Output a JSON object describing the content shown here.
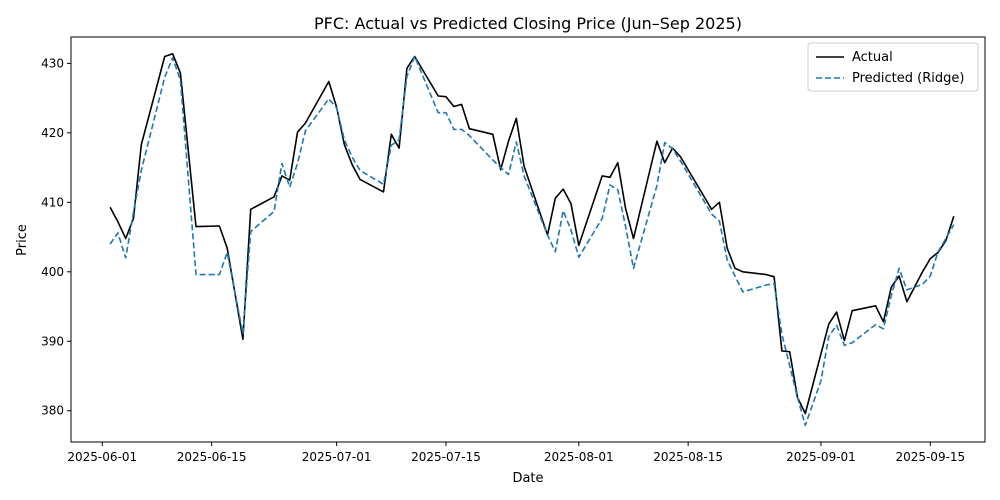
{
  "chart_data": {
    "type": "line",
    "title": "PFC: Actual vs Predicted Closing Price (Jun–Sep 2025)",
    "xlabel": "Date",
    "ylabel": "Price",
    "xlim": [
      "2025-05-28",
      "2025-09-22"
    ],
    "ylim": [
      375.5,
      433.8
    ],
    "x_ticks": [
      "2025-06-01",
      "2025-06-15",
      "2025-07-01",
      "2025-07-15",
      "2025-08-01",
      "2025-08-15",
      "2025-09-01",
      "2025-09-15"
    ],
    "y_ticks": [
      380,
      390,
      400,
      410,
      420,
      430
    ],
    "grid": false,
    "legend": {
      "position": "top-right",
      "entries": [
        "Actual",
        "Predicted (Ridge)"
      ]
    },
    "series": [
      {
        "name": "Actual",
        "color": "#000000",
        "style": "solid",
        "points": [
          [
            "2025-06-02",
            409.3
          ],
          [
            "2025-06-03",
            407.2
          ],
          [
            "2025-06-04",
            404.8
          ],
          [
            "2025-06-05",
            407.7
          ],
          [
            "2025-06-06",
            418.3
          ],
          [
            "2025-06-09",
            431.0
          ],
          [
            "2025-06-10",
            431.4
          ],
          [
            "2025-06-11",
            428.6
          ],
          [
            "2025-06-13",
            406.5
          ],
          [
            "2025-06-16",
            406.6
          ],
          [
            "2025-06-17",
            403.4
          ],
          [
            "2025-06-19",
            390.3
          ],
          [
            "2025-06-20",
            409.0
          ],
          [
            "2025-06-23",
            410.8
          ],
          [
            "2025-06-24",
            413.8
          ],
          [
            "2025-06-25",
            413.2
          ],
          [
            "2025-06-26",
            420.1
          ],
          [
            "2025-06-27",
            421.4
          ],
          [
            "2025-06-30",
            427.4
          ],
          [
            "2025-07-01",
            423.7
          ],
          [
            "2025-07-02",
            418.3
          ],
          [
            "2025-07-03",
            415.4
          ],
          [
            "2025-07-04",
            413.3
          ],
          [
            "2025-07-07",
            411.5
          ],
          [
            "2025-07-08",
            419.8
          ],
          [
            "2025-07-09",
            417.8
          ],
          [
            "2025-07-10",
            429.3
          ],
          [
            "2025-07-11",
            431.0
          ],
          [
            "2025-07-14",
            425.3
          ],
          [
            "2025-07-15",
            425.2
          ],
          [
            "2025-07-16",
            423.8
          ],
          [
            "2025-07-17",
            424.1
          ],
          [
            "2025-07-18",
            420.6
          ],
          [
            "2025-07-21",
            419.8
          ],
          [
            "2025-07-22",
            414.7
          ],
          [
            "2025-07-23",
            418.8
          ],
          [
            "2025-07-24",
            422.1
          ],
          [
            "2025-07-25",
            415.2
          ],
          [
            "2025-07-28",
            405.3
          ],
          [
            "2025-07-29",
            410.6
          ],
          [
            "2025-07-30",
            411.9
          ],
          [
            "2025-07-31",
            409.8
          ],
          [
            "2025-08-01",
            403.8
          ],
          [
            "2025-08-04",
            413.8
          ],
          [
            "2025-08-05",
            413.6
          ],
          [
            "2025-08-06",
            415.7
          ],
          [
            "2025-08-07",
            409.1
          ],
          [
            "2025-08-08",
            404.8
          ],
          [
            "2025-08-11",
            418.8
          ],
          [
            "2025-08-12",
            415.7
          ],
          [
            "2025-08-13",
            417.8
          ],
          [
            "2025-08-14",
            416.6
          ],
          [
            "2025-08-18",
            409.0
          ],
          [
            "2025-08-19",
            410.0
          ],
          [
            "2025-08-20",
            403.4
          ],
          [
            "2025-08-21",
            400.5
          ],
          [
            "2025-08-22",
            400.0
          ],
          [
            "2025-08-25",
            399.6
          ],
          [
            "2025-08-26",
            399.3
          ],
          [
            "2025-08-27",
            388.6
          ],
          [
            "2025-08-28",
            388.5
          ],
          [
            "2025-08-29",
            381.9
          ],
          [
            "2025-08-30",
            379.6
          ],
          [
            "2025-09-02",
            392.5
          ],
          [
            "2025-09-03",
            394.2
          ],
          [
            "2025-09-04",
            390.1
          ],
          [
            "2025-09-05",
            394.4
          ],
          [
            "2025-09-08",
            395.1
          ],
          [
            "2025-09-09",
            392.8
          ],
          [
            "2025-09-10",
            397.8
          ],
          [
            "2025-09-11",
            399.4
          ],
          [
            "2025-09-12",
            395.7
          ],
          [
            "2025-09-14",
            400.0
          ],
          [
            "2025-09-15",
            401.9
          ],
          [
            "2025-09-16",
            402.8
          ],
          [
            "2025-09-17",
            404.5
          ],
          [
            "2025-09-18",
            408.0
          ]
        ]
      },
      {
        "name": "Predicted (Ridge)",
        "color": "#1f77b4",
        "style": "dashed",
        "points": [
          [
            "2025-06-02",
            404.0
          ],
          [
            "2025-06-03",
            405.6
          ],
          [
            "2025-06-04",
            402.0
          ],
          [
            "2025-06-05",
            408.6
          ],
          [
            "2025-06-06",
            414.6
          ],
          [
            "2025-06-09",
            428.0
          ],
          [
            "2025-06-10",
            430.8
          ],
          [
            "2025-06-11",
            427.6
          ],
          [
            "2025-06-13",
            399.6
          ],
          [
            "2025-06-16",
            399.6
          ],
          [
            "2025-06-17",
            402.8
          ],
          [
            "2025-06-19",
            391.1
          ],
          [
            "2025-06-20",
            405.8
          ],
          [
            "2025-06-23",
            408.7
          ],
          [
            "2025-06-24",
            415.6
          ],
          [
            "2025-06-25",
            412.2
          ],
          [
            "2025-06-26",
            415.6
          ],
          [
            "2025-06-27",
            420.3
          ],
          [
            "2025-06-30",
            424.9
          ],
          [
            "2025-07-01",
            423.6
          ],
          [
            "2025-07-02",
            419.0
          ],
          [
            "2025-07-03",
            416.5
          ],
          [
            "2025-07-04",
            414.6
          ],
          [
            "2025-07-07",
            412.6
          ],
          [
            "2025-07-08",
            418.2
          ],
          [
            "2025-07-09",
            419.0
          ],
          [
            "2025-07-10",
            428.1
          ],
          [
            "2025-07-11",
            431.0
          ],
          [
            "2025-07-14",
            422.9
          ],
          [
            "2025-07-15",
            422.9
          ],
          [
            "2025-07-16",
            420.5
          ],
          [
            "2025-07-17",
            420.5
          ],
          [
            "2025-07-18",
            419.6
          ],
          [
            "2025-07-21",
            416.1
          ],
          [
            "2025-07-22",
            415.0
          ],
          [
            "2025-07-23",
            414.0
          ],
          [
            "2025-07-24",
            418.7
          ],
          [
            "2025-07-25",
            413.8
          ],
          [
            "2025-07-28",
            405.3
          ],
          [
            "2025-07-29",
            402.9
          ],
          [
            "2025-07-30",
            408.8
          ],
          [
            "2025-07-31",
            406.0
          ],
          [
            "2025-08-01",
            402.1
          ],
          [
            "2025-08-04",
            407.7
          ],
          [
            "2025-08-05",
            412.5
          ],
          [
            "2025-08-06",
            411.8
          ],
          [
            "2025-08-07",
            406.5
          ],
          [
            "2025-08-08",
            400.5
          ],
          [
            "2025-08-11",
            412.4
          ],
          [
            "2025-08-12",
            418.6
          ],
          [
            "2025-08-13",
            417.7
          ],
          [
            "2025-08-14",
            416.0
          ],
          [
            "2025-08-18",
            408.3
          ],
          [
            "2025-08-19",
            407.3
          ],
          [
            "2025-08-20",
            401.7
          ],
          [
            "2025-08-21",
            399.4
          ],
          [
            "2025-08-22",
            397.1
          ],
          [
            "2025-08-25",
            398.1
          ],
          [
            "2025-08-26",
            398.3
          ],
          [
            "2025-08-27",
            391.0
          ],
          [
            "2025-08-28",
            386.5
          ],
          [
            "2025-08-29",
            381.9
          ],
          [
            "2025-08-30",
            377.9
          ],
          [
            "2025-09-01",
            384.3
          ],
          [
            "2025-09-02",
            390.7
          ],
          [
            "2025-09-03",
            392.3
          ],
          [
            "2025-09-04",
            389.4
          ],
          [
            "2025-09-05",
            389.8
          ],
          [
            "2025-09-08",
            392.4
          ],
          [
            "2025-09-09",
            391.8
          ],
          [
            "2025-09-10",
            396.6
          ],
          [
            "2025-09-11",
            400.5
          ],
          [
            "2025-09-12",
            397.4
          ],
          [
            "2025-09-14",
            398.2
          ],
          [
            "2025-09-15",
            399.4
          ],
          [
            "2025-09-16",
            402.9
          ],
          [
            "2025-09-17",
            404.8
          ],
          [
            "2025-09-18",
            406.8
          ]
        ]
      }
    ]
  }
}
